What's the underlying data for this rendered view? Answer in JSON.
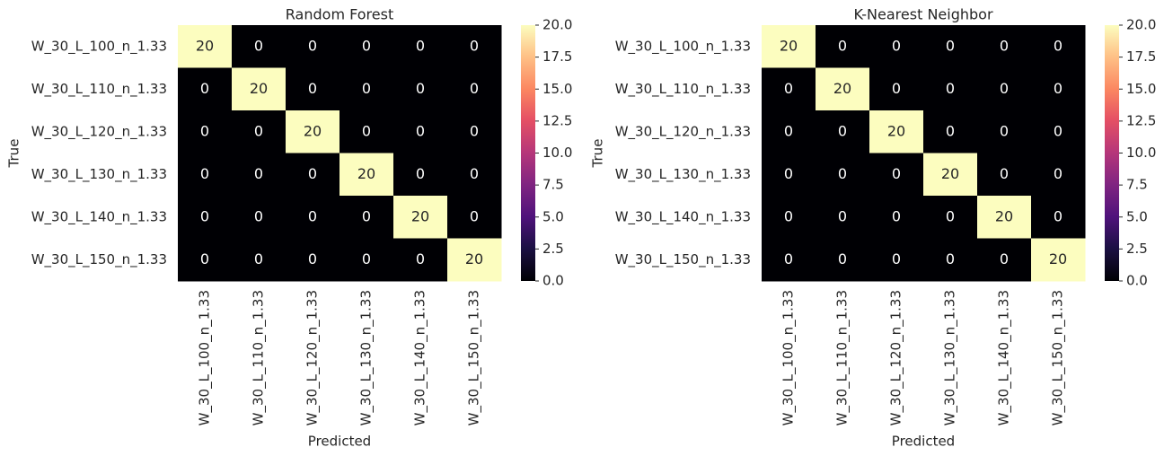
{
  "chart_data": [
    {
      "type": "heatmap",
      "title": "Random Forest",
      "x_label": "Predicted",
      "y_label": "True",
      "x_categories": [
        "W_30_L_100_n_1.33",
        "W_30_L_110_n_1.33",
        "W_30_L_120_n_1.33",
        "W_30_L_130_n_1.33",
        "W_30_L_140_n_1.33",
        "W_30_L_150_n_1.33"
      ],
      "y_categories": [
        "W_30_L_100_n_1.33",
        "W_30_L_110_n_1.33",
        "W_30_L_120_n_1.33",
        "W_30_L_130_n_1.33",
        "W_30_L_140_n_1.33",
        "W_30_L_150_n_1.33"
      ],
      "values": [
        [
          20,
          0,
          0,
          0,
          0,
          0
        ],
        [
          0,
          20,
          0,
          0,
          0,
          0
        ],
        [
          0,
          0,
          20,
          0,
          0,
          0
        ],
        [
          0,
          0,
          0,
          20,
          0,
          0
        ],
        [
          0,
          0,
          0,
          0,
          20,
          0
        ],
        [
          0,
          0,
          0,
          0,
          0,
          20
        ]
      ],
      "colormap": "magma",
      "clim": [
        0,
        20
      ],
      "cticks": [
        {
          "value": 0,
          "label": "0.0"
        },
        2.5,
        {
          "value": 5,
          "label": "5.0"
        },
        7.5,
        {
          "value": 10,
          "label": "10.0"
        },
        12.5,
        {
          "value": 15,
          "label": "15.0"
        },
        17.5,
        {
          "value": 20,
          "label": "20.0"
        }
      ]
    },
    {
      "type": "heatmap",
      "title": "K-Nearest Neighbor",
      "x_label": "Predicted",
      "y_label": "True",
      "x_categories": [
        "W_30_L_100_n_1.33",
        "W_30_L_110_n_1.33",
        "W_30_L_120_n_1.33",
        "W_30_L_130_n_1.33",
        "W_30_L_140_n_1.33",
        "W_30_L_150_n_1.33"
      ],
      "y_categories": [
        "W_30_L_100_n_1.33",
        "W_30_L_110_n_1.33",
        "W_30_L_120_n_1.33",
        "W_30_L_130_n_1.33",
        "W_30_L_140_n_1.33",
        "W_30_L_150_n_1.33"
      ],
      "values": [
        [
          20,
          0,
          0,
          0,
          0,
          0
        ],
        [
          0,
          20,
          0,
          0,
          0,
          0
        ],
        [
          0,
          0,
          20,
          0,
          0,
          0
        ],
        [
          0,
          0,
          0,
          20,
          0,
          0
        ],
        [
          0,
          0,
          0,
          0,
          20,
          0
        ],
        [
          0,
          0,
          0,
          0,
          0,
          20
        ]
      ],
      "colormap": "magma",
      "clim": [
        0,
        20
      ],
      "cticks": [
        {
          "value": 0,
          "label": "0.0"
        },
        2.5,
        {
          "value": 5,
          "label": "5.0"
        },
        7.5,
        {
          "value": 10,
          "label": "10.0"
        },
        12.5,
        {
          "value": 15,
          "label": "15.0"
        },
        17.5,
        {
          "value": 20,
          "label": "20.0"
        }
      ]
    }
  ]
}
